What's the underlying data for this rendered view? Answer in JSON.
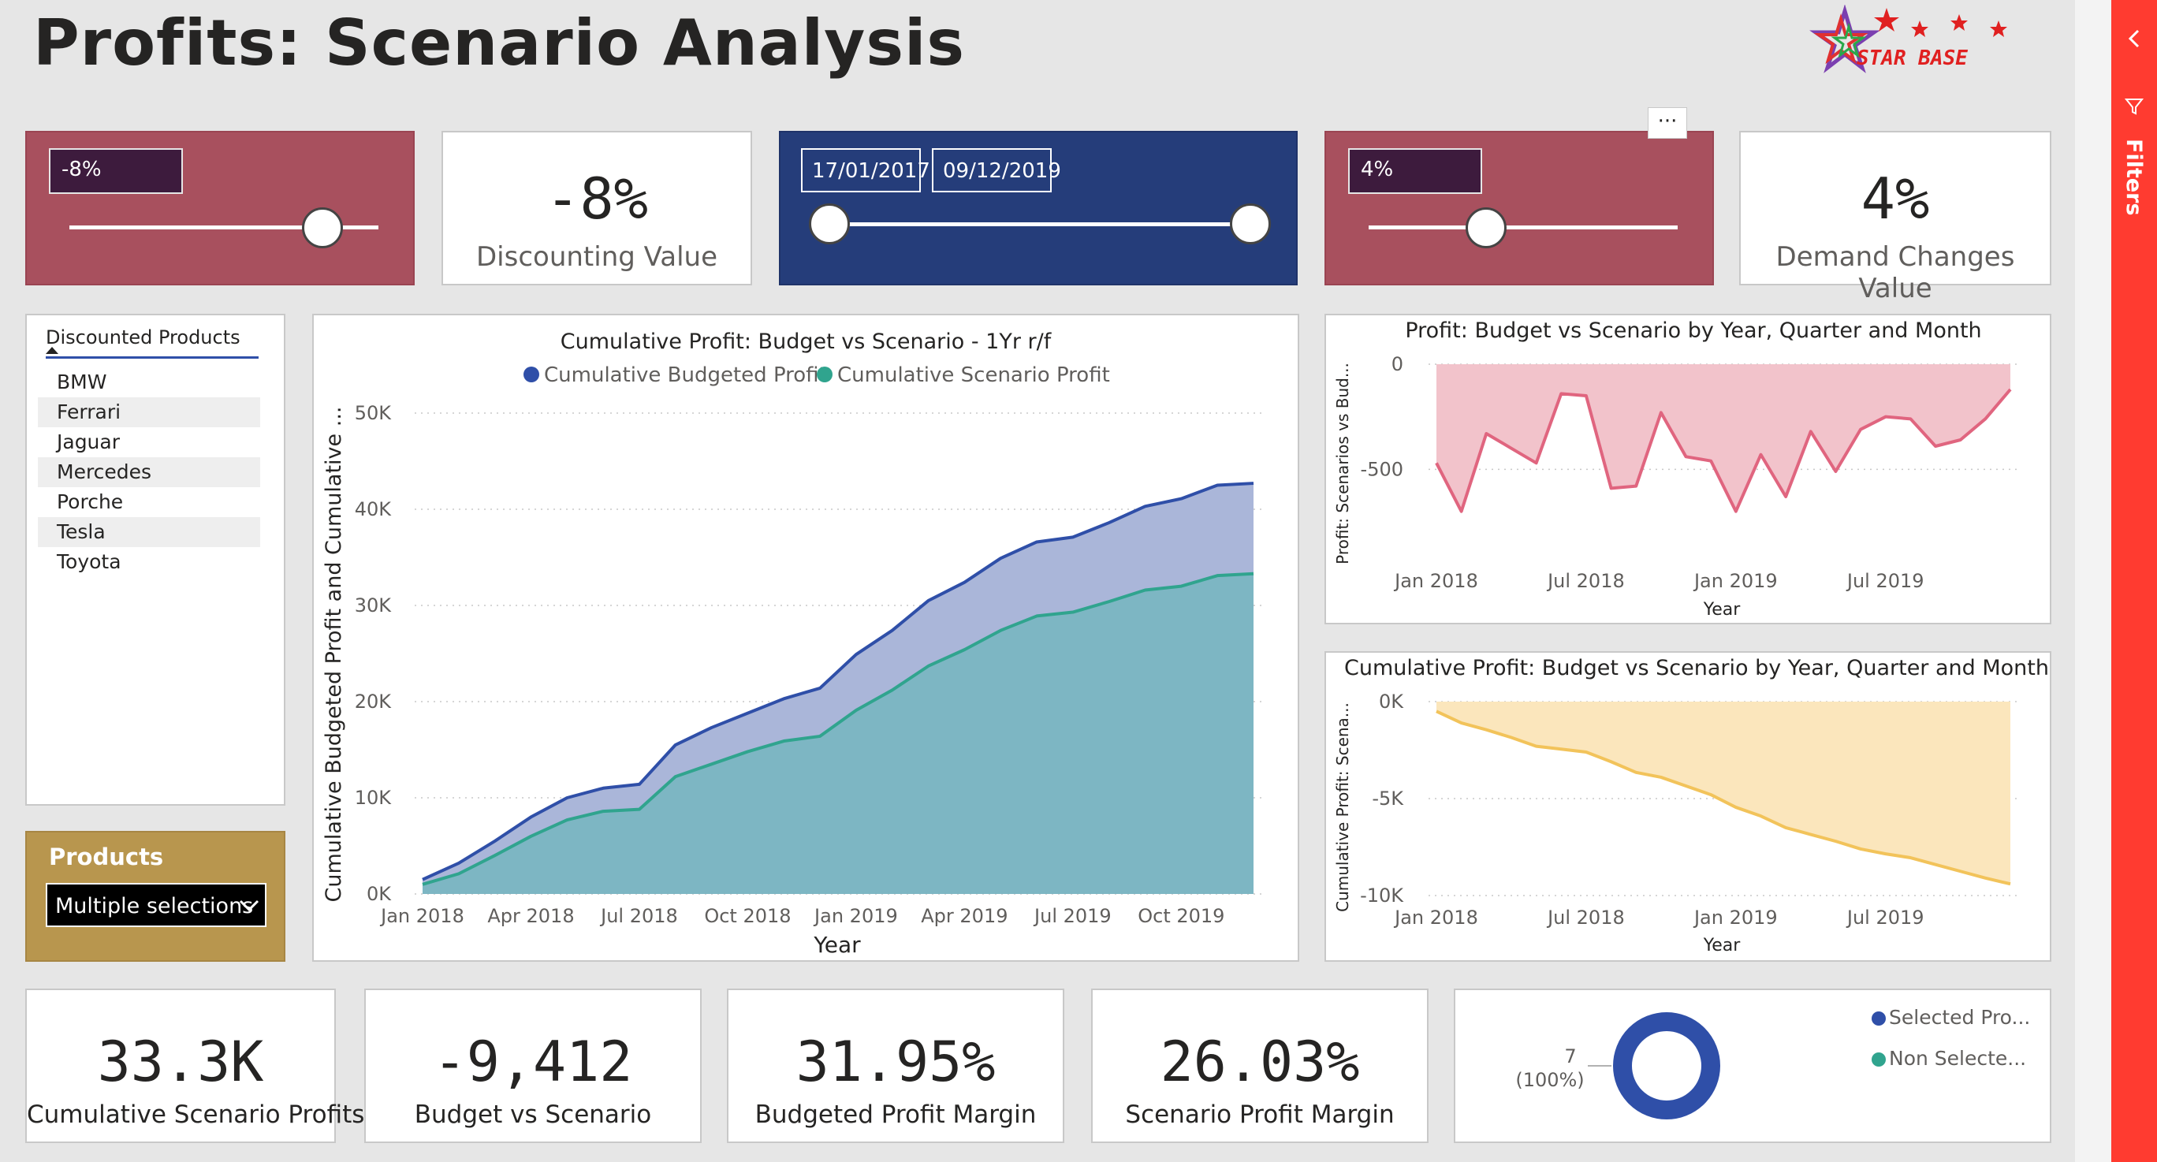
{
  "page": {
    "title": "Profits: Scenario Analysis"
  },
  "logo": {
    "text": "STAR BASE"
  },
  "discount_slicer": {
    "value": "-8%",
    "level_percent": 82
  },
  "discount_card": {
    "value": "-8%",
    "label": "Discounting Value"
  },
  "date_slicer": {
    "start": "17/01/2017",
    "end": "09/12/2019"
  },
  "demand_slicer": {
    "value": "4%",
    "level_percent": 38
  },
  "demand_card": {
    "value": "4%",
    "label": "Demand Changes Value"
  },
  "more_options": "···",
  "products_list": {
    "header": "Discounted Products",
    "items": [
      "BMW",
      "Ferrari",
      "Jaguar",
      "Mercedes",
      "Porche",
      "Tesla",
      "Toyota"
    ]
  },
  "products_dropdown": {
    "title": "Products",
    "value": "Multiple selections"
  },
  "filters_pane": {
    "label": "Filters"
  },
  "kpis": [
    {
      "value": "33.3K",
      "label": "Cumulative Scenario Profits"
    },
    {
      "value": "-9,412",
      "label": "Budget vs Scenario"
    },
    {
      "value": "31.95%",
      "label": "Budgeted Profit Margin"
    },
    {
      "value": "26.03%",
      "label": "Scenario Profit Margin"
    }
  ],
  "donut": {
    "count_label": "7",
    "percent_label": "(100%)",
    "legend": [
      {
        "name": "Selected Pro...",
        "color": "#2f4fa8"
      },
      {
        "name": "Non Selecte...",
        "color": "#30a48e"
      }
    ]
  },
  "colors": {
    "budget": "#2f4fa8",
    "scenario": "#30a48e",
    "red_line": "#e0657f",
    "yellow_line": "#f2c35a"
  },
  "chart_data": [
    {
      "type": "area",
      "title": "Cumulative Profit: Budget vs Scenario - 1Yr r/f",
      "xlabel": "Year",
      "ylabel": "Cumulative Budgeted Profit and Cumulative ...",
      "ylim": [
        0,
        50000
      ],
      "yticks": [
        "0K",
        "10K",
        "20K",
        "30K",
        "40K",
        "50K"
      ],
      "xticks": [
        "Jan 2018",
        "Apr 2018",
        "Jul 2018",
        "Oct 2018",
        "Jan 2019",
        "Apr 2019",
        "Jul 2019",
        "Oct 2019"
      ],
      "legend_position": "top",
      "x": [
        "Jan 2018",
        "Feb 2018",
        "Mar 2018",
        "Apr 2018",
        "May 2018",
        "Jun 2018",
        "Jul 2018",
        "Aug 2018",
        "Sep 2018",
        "Oct 2018",
        "Nov 2018",
        "Dec 2018",
        "Jan 2019",
        "Feb 2019",
        "Mar 2019",
        "Apr 2019",
        "May 2019",
        "Jun 2019",
        "Jul 2019",
        "Aug 2019",
        "Sep 2019",
        "Oct 2019",
        "Nov 2019",
        "Dec 2019"
      ],
      "series": [
        {
          "name": "Cumulative Budgeted Profit",
          "values": [
            1500,
            3200,
            5500,
            8000,
            10000,
            11000,
            11400,
            15500,
            17300,
            18800,
            20300,
            21400,
            24900,
            27400,
            30500,
            32400,
            34900,
            36600,
            37100,
            38600,
            40300,
            41100,
            42500,
            42700
          ]
        },
        {
          "name": "Cumulative Scenario Profit",
          "values": [
            1000,
            2100,
            4000,
            6000,
            7700,
            8600,
            8800,
            12200,
            13500,
            14800,
            15900,
            16400,
            19100,
            21200,
            23700,
            25400,
            27400,
            28900,
            29300,
            30400,
            31600,
            32000,
            33100,
            33300
          ]
        }
      ]
    },
    {
      "type": "area",
      "title": "Profit: Budget vs Scenario by Year, Quarter and Month",
      "xlabel": "Year",
      "ylabel": "Profit: Scenarios vs Bud...",
      "ylim": [
        -720,
        0
      ],
      "yticks": [
        "0",
        "-500"
      ],
      "xticks": [
        "Jan 2018",
        "Jul 2018",
        "Jan 2019",
        "Jul 2019"
      ],
      "x": [
        "Jan 2018",
        "Feb 2018",
        "Mar 2018",
        "Apr 2018",
        "May 2018",
        "Jun 2018",
        "Jul 2018",
        "Aug 2018",
        "Sep 2018",
        "Oct 2018",
        "Nov 2018",
        "Dec 2018",
        "Jan 2019",
        "Feb 2019",
        "Mar 2019",
        "Apr 2019",
        "May 2019",
        "Jun 2019",
        "Jul 2019",
        "Aug 2019",
        "Sep 2019",
        "Oct 2019",
        "Nov 2019",
        "Dec 2019"
      ],
      "series": [
        {
          "name": "",
          "values": [
            -470,
            -700,
            -330,
            -400,
            -470,
            -140,
            -150,
            -590,
            -580,
            -230,
            -440,
            -460,
            -700,
            -430,
            -630,
            -320,
            -510,
            -310,
            -250,
            -260,
            -390,
            -360,
            -260,
            -120
          ]
        }
      ]
    },
    {
      "type": "area",
      "title": "Cumulative Profit: Budget vs Scenario by Year, Quarter and Month",
      "xlabel": "Year",
      "ylabel": "Cumulative Profit: Scena...",
      "ylim": [
        -10000,
        0
      ],
      "yticks": [
        "0K",
        "-5K",
        "-10K"
      ],
      "xticks": [
        "Jan 2018",
        "Jul 2018",
        "Jan 2019",
        "Jul 2019"
      ],
      "x": [
        "Jan 2018",
        "Feb 2018",
        "Mar 2018",
        "Apr 2018",
        "May 2018",
        "Jun 2018",
        "Jul 2018",
        "Aug 2018",
        "Sep 2018",
        "Oct 2018",
        "Nov 2018",
        "Dec 2018",
        "Jan 2019",
        "Feb 2019",
        "Mar 2019",
        "Apr 2019",
        "May 2019",
        "Jun 2019",
        "Jul 2019",
        "Aug 2019",
        "Sep 2019",
        "Oct 2019",
        "Nov 2019",
        "Dec 2019"
      ],
      "series": [
        {
          "name": "",
          "values": [
            -500,
            -1100,
            -1450,
            -1850,
            -2300,
            -2450,
            -2600,
            -3100,
            -3650,
            -3900,
            -4350,
            -4800,
            -5450,
            -5900,
            -6500,
            -6850,
            -7200,
            -7600,
            -7850,
            -8050,
            -8400,
            -8750,
            -9100,
            -9400
          ]
        }
      ]
    }
  ]
}
